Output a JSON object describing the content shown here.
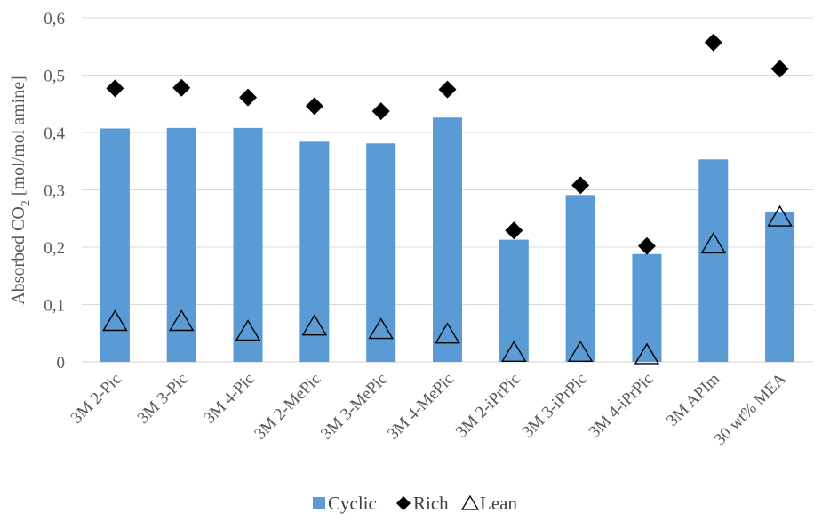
{
  "chart_data": {
    "type": "bar",
    "categories": [
      "3M 2-Pic",
      "3M 3-Pic",
      "3M 4-Pic",
      "3M 2-MePic",
      "3M 3-MePic",
      "3M 4-MePic",
      "3M 2-iPrPic",
      "3M 3-iPrPic",
      "3M 4-iPrPic",
      "3M APIm",
      "30 wt% MEA"
    ],
    "series": [
      {
        "name": "Cyclic",
        "kind": "bar",
        "marker": "square",
        "color": "#5b9bd5",
        "values": [
          0.407,
          0.408,
          0.408,
          0.384,
          0.381,
          0.426,
          0.213,
          0.291,
          0.188,
          0.353,
          0.261
        ]
      },
      {
        "name": "Rich",
        "kind": "marker",
        "marker": "diamond",
        "color": "#000000",
        "values": [
          0.477,
          0.478,
          0.461,
          0.446,
          0.437,
          0.475,
          0.229,
          0.308,
          0.202,
          0.557,
          0.511
        ]
      },
      {
        "name": "Lean",
        "kind": "marker",
        "marker": "triangle-open",
        "color": "#000000",
        "values": [
          0.069,
          0.069,
          0.052,
          0.061,
          0.055,
          0.047,
          0.015,
          0.015,
          0.011,
          0.204,
          0.251
        ]
      }
    ],
    "y_ticks": [
      "0",
      "0,1",
      "0,2",
      "0,3",
      "0,4",
      "0,5",
      "0,6"
    ],
    "ylim": [
      0,
      0.6
    ],
    "ylabel": {
      "prefix": "Absorbed CO",
      "subscript": "2",
      "suffix": " [mol/mol amine]"
    },
    "xlabel": "",
    "grid": "horizontal",
    "legend": "bottom-center"
  }
}
